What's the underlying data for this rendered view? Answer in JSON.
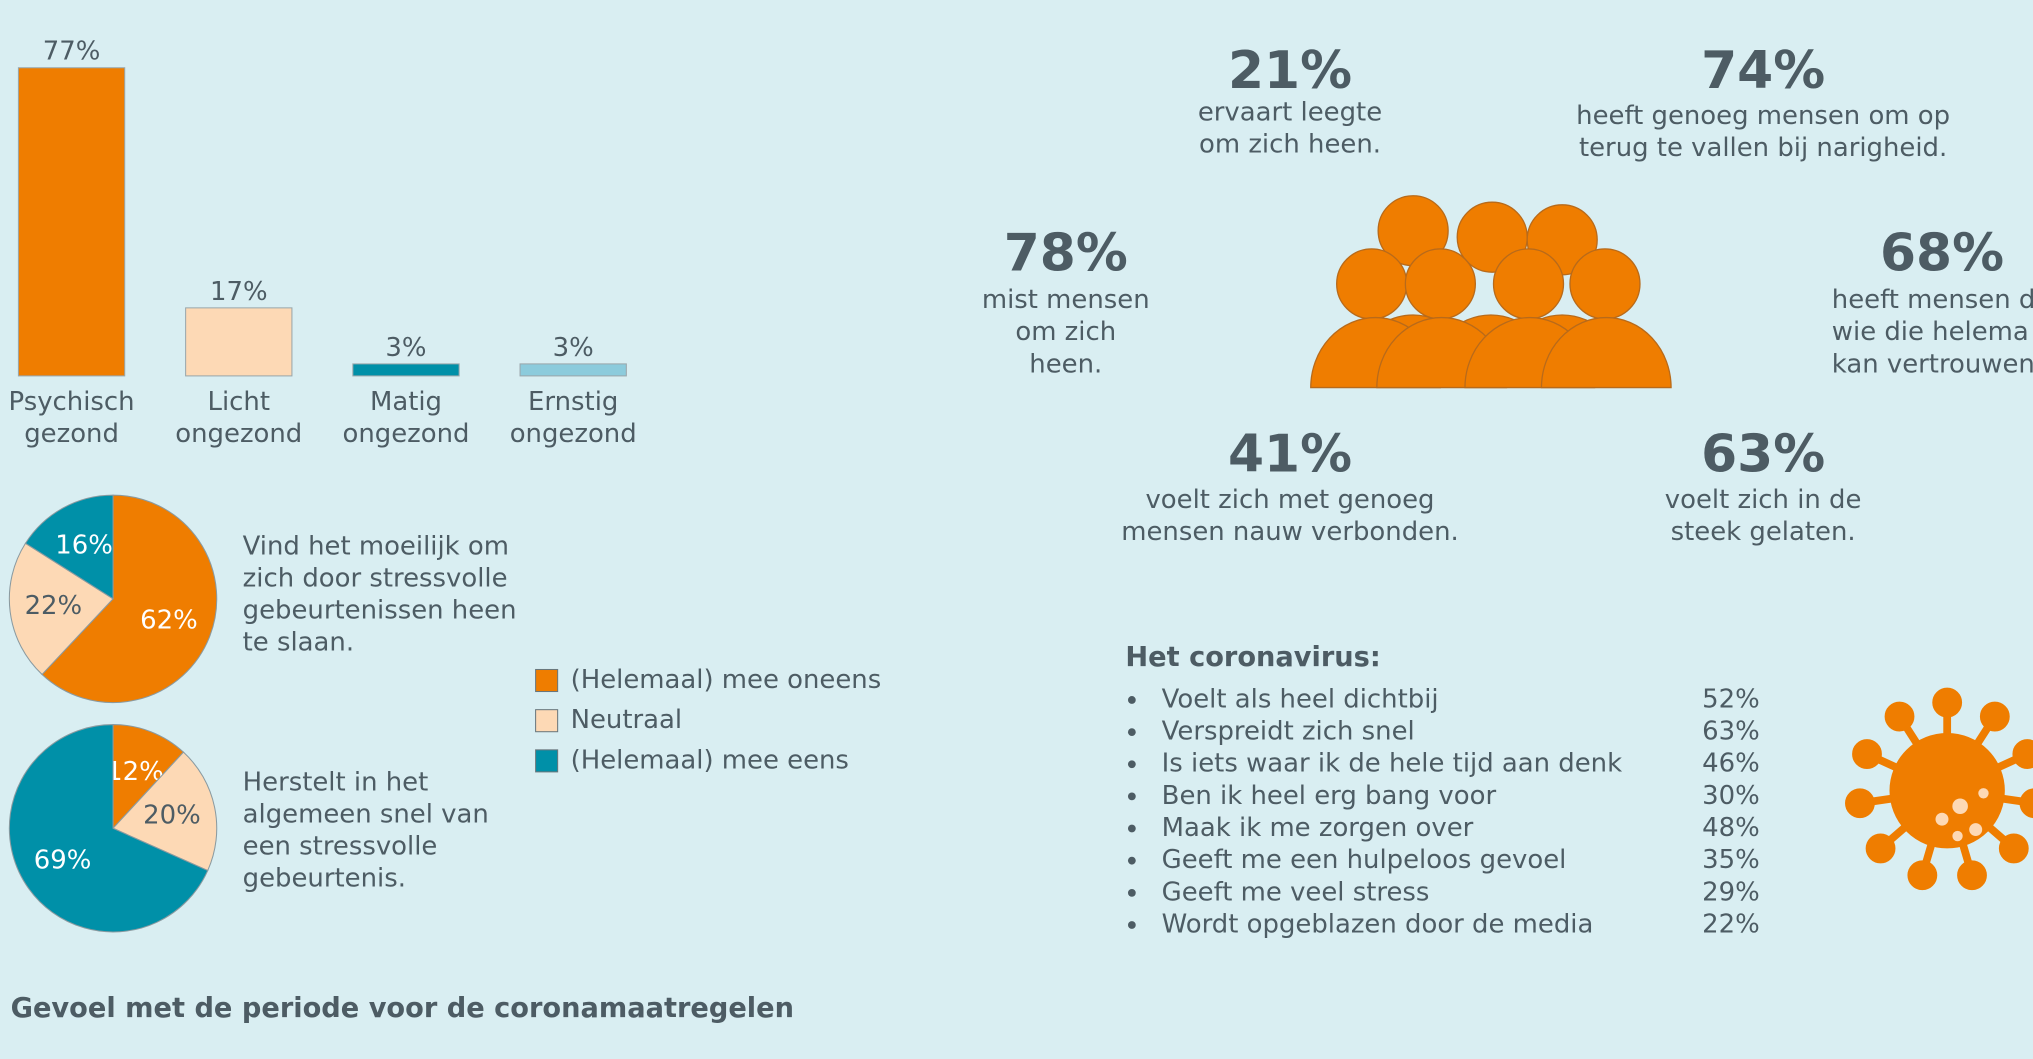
{
  "chart_data": [
    {
      "type": "bar",
      "categories": [
        "Psychisch gezond",
        "Licht ongezond",
        "Matig ongezond",
        "Ernstig ongezond"
      ],
      "values": [
        77,
        17,
        3,
        3
      ],
      "value_labels": [
        "77%",
        "17%",
        "3%",
        "3%"
      ],
      "colors": [
        "#ef7d00",
        "#fdd9b5",
        "#0090a8",
        "#8ccbdc"
      ],
      "ylim": [
        0,
        80
      ]
    },
    {
      "type": "pie",
      "values": [
        62,
        22,
        16
      ],
      "value_labels": [
        "62%",
        "22%",
        "16%"
      ],
      "caption": [
        "Vind het moeilijk om",
        "zich door stressvolle",
        "gebeurtenissen heen",
        "te slaan."
      ]
    },
    {
      "type": "pie",
      "values": [
        12,
        20,
        69
      ],
      "value_labels": [
        "12%",
        "20%",
        "69%"
      ],
      "caption": [
        "Herstelt in het",
        "algemeen snel van",
        "een stressvolle",
        "gebeurtenis."
      ]
    }
  ],
  "pie_legend": [
    {
      "name": "(Helemaal) mee oneens",
      "color": "#ef7d00"
    },
    {
      "name": "Neutraal",
      "color": "#fdd9b5"
    },
    {
      "name": "(Helemaal) mee eens",
      "color": "#0090a8"
    }
  ],
  "stats": [
    {
      "figure": "21%",
      "text": [
        "ervaart leegte",
        "om zich heen."
      ]
    },
    {
      "figure": "74%",
      "text": [
        "heeft genoeg mensen om op",
        "terug te vallen bij narigheid."
      ]
    },
    {
      "figure": "78%",
      "text": [
        "mist mensen",
        "om zich",
        "heen."
      ]
    },
    {
      "figure": "68%",
      "text": [
        "heeft mensen d",
        "wie die helema",
        "kan vertrouwen"
      ]
    },
    {
      "figure": "41%",
      "text": [
        "voelt zich met genoeg",
        "mensen nauw verbonden."
      ]
    },
    {
      "figure": "63%",
      "text": [
        "voelt zich in de",
        "steek gelaten."
      ]
    }
  ],
  "corona": {
    "title": "Het coronavirus:",
    "items": [
      {
        "label": "Voelt als heel dichtbij",
        "value": "52%"
      },
      {
        "label": "Verspreidt zich snel",
        "value": "63%"
      },
      {
        "label": "Is iets waar ik de hele tijd aan denk",
        "value": "46%"
      },
      {
        "label": "Ben ik heel erg bang voor",
        "value": "30%"
      },
      {
        "label": "Maak ik me zorgen over",
        "value": "48%"
      },
      {
        "label": "Geeft me een hulpeloos gevoel",
        "value": "35%"
      },
      {
        "label": "Geeft me veel stress",
        "value": "29%"
      },
      {
        "label": "Wordt opgeblazen door de media",
        "value": "22%"
      }
    ]
  },
  "footer_heading": "Gevoel met de periode voor de coronamaatregelen"
}
